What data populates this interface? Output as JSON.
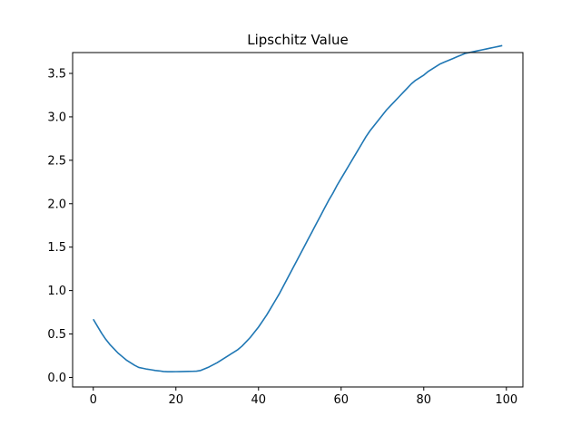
{
  "chart_data": {
    "type": "line",
    "title": "Lipschitz Value",
    "xlabel": "",
    "ylabel": "",
    "xlim": [
      -5,
      104
    ],
    "ylim": [
      -0.11,
      3.74
    ],
    "xticks": [
      0,
      20,
      40,
      60,
      80,
      100
    ],
    "yticks": [
      0.0,
      0.5,
      1.0,
      1.5,
      2.0,
      2.5,
      3.0,
      3.5
    ],
    "ytick_labels": [
      "0.0",
      "0.5",
      "1.0",
      "1.5",
      "2.0",
      "2.5",
      "3.0",
      "3.5"
    ],
    "grid": false,
    "series": [
      {
        "color": "#1f77b4",
        "x": [
          0,
          1,
          2,
          3,
          4,
          5,
          6,
          7,
          8,
          9,
          10,
          11,
          12,
          13,
          14,
          15,
          16,
          17,
          18,
          19,
          20,
          21,
          22,
          23,
          24,
          25,
          26,
          27,
          28,
          29,
          30,
          31,
          32,
          33,
          34,
          35,
          36,
          37,
          38,
          39,
          40,
          41,
          42,
          43,
          44,
          45,
          46,
          47,
          48,
          49,
          50,
          51,
          52,
          53,
          54,
          55,
          56,
          57,
          58,
          59,
          60,
          61,
          62,
          63,
          64,
          65,
          66,
          67,
          68,
          69,
          70,
          71,
          72,
          73,
          74,
          75,
          76,
          77,
          78,
          79,
          80,
          81,
          82,
          83,
          84,
          85,
          86,
          87,
          88,
          89,
          90,
          91,
          92,
          93,
          94,
          95,
          96,
          97,
          98,
          99
        ],
        "y": [
          0.67,
          0.59,
          0.51,
          0.44,
          0.38,
          0.33,
          0.28,
          0.24,
          0.2,
          0.17,
          0.14,
          0.115,
          0.105,
          0.095,
          0.088,
          0.08,
          0.075,
          0.068,
          0.065,
          0.065,
          0.066,
          0.067,
          0.068,
          0.069,
          0.07,
          0.072,
          0.08,
          0.1,
          0.12,
          0.145,
          0.17,
          0.2,
          0.23,
          0.26,
          0.29,
          0.32,
          0.36,
          0.41,
          0.46,
          0.52,
          0.58,
          0.65,
          0.72,
          0.8,
          0.88,
          0.96,
          1.05,
          1.14,
          1.23,
          1.32,
          1.41,
          1.5,
          1.59,
          1.68,
          1.77,
          1.86,
          1.95,
          2.04,
          2.12,
          2.21,
          2.29,
          2.37,
          2.45,
          2.53,
          2.61,
          2.69,
          2.77,
          2.84,
          2.9,
          2.96,
          3.02,
          3.08,
          3.13,
          3.18,
          3.23,
          3.28,
          3.33,
          3.38,
          3.42,
          3.45,
          3.48,
          3.52,
          3.55,
          3.58,
          3.61,
          3.63,
          3.65,
          3.67,
          3.69,
          3.71,
          3.73,
          3.74,
          3.75,
          3.76,
          3.77,
          3.78,
          3.79,
          3.8,
          3.81,
          3.82
        ]
      }
    ]
  }
}
